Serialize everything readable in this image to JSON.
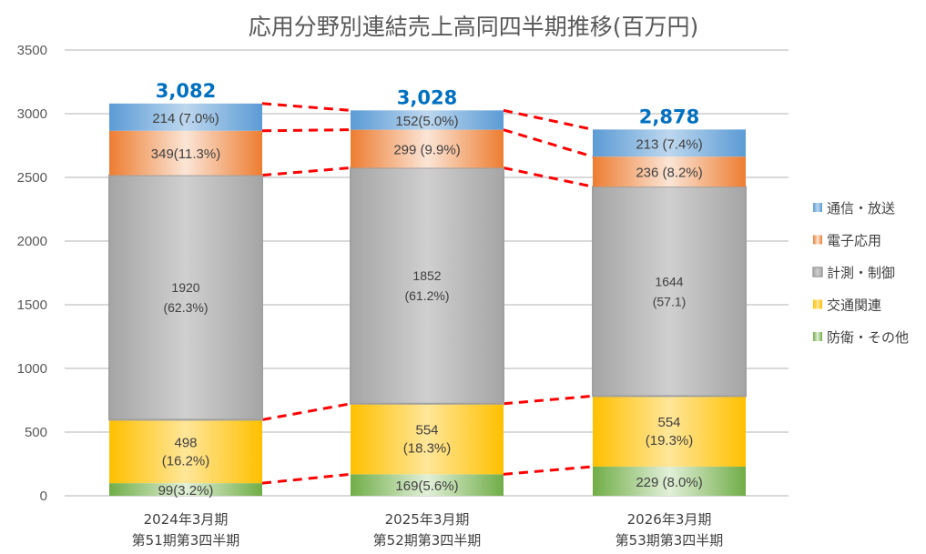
{
  "chart_data": {
    "type": "bar",
    "stacked": true,
    "title": "応用分野別連結売上高同四半期推移(百万円)",
    "xlabel": "",
    "ylabel": "",
    "ylim": [
      0,
      3500
    ],
    "yticks": [
      0,
      500,
      1000,
      1500,
      2000,
      2500,
      3000,
      3500
    ],
    "grid": true,
    "legend_position": "right",
    "categories": [
      [
        "2024年3月期",
        "第51期第3四半期"
      ],
      [
        "2025年3月期",
        "第52期第3四半期"
      ],
      [
        "2026年3月期",
        "第53期第3四半期"
      ]
    ],
    "totals": [
      "3,082",
      "3,028",
      "2,878"
    ],
    "series": [
      {
        "name": "防衛・その他",
        "color": "#70AD47",
        "values": [
          99,
          169,
          229
        ],
        "labels": [
          [
            "99(3.2%)"
          ],
          [
            "169(5.6%)"
          ],
          [
            "229 (8.0%)"
          ]
        ]
      },
      {
        "name": "交通関連",
        "color": "#FFC000",
        "values": [
          498,
          554,
          554
        ],
        "labels": [
          [
            "498",
            "(16.2%)"
          ],
          [
            "554",
            "(18.3%)"
          ],
          [
            "554",
            "(19.3%)"
          ]
        ]
      },
      {
        "name": "計測・制御",
        "color": "#A5A5A5",
        "values": [
          1920,
          1852,
          1644
        ],
        "labels": [
          [
            "1920",
            "(62.3%)"
          ],
          [
            "1852",
            "(61.2%)"
          ],
          [
            "1644",
            "(57.1)"
          ]
        ]
      },
      {
        "name": "電子応用",
        "color": "#ED7D31",
        "values": [
          349,
          299,
          236
        ],
        "labels": [
          [
            "349(11.3%)"
          ],
          [
            "299 (9.9%)"
          ],
          [
            "236 (8.2%)"
          ]
        ]
      },
      {
        "name": "通信・放送",
        "color": "#5B9BD5",
        "values": [
          214,
          152,
          213
        ],
        "labels": [
          [
            "214 (7.0%)"
          ],
          [
            "152(5.0%)"
          ],
          [
            "213 (7.4%)"
          ]
        ]
      }
    ],
    "legend_order": [
      "通信・放送",
      "電子応用",
      "計測・制御",
      "交通関連",
      "防衛・その他"
    ],
    "connector_lines": {
      "style": "dashed",
      "color": "#FF0000"
    }
  }
}
